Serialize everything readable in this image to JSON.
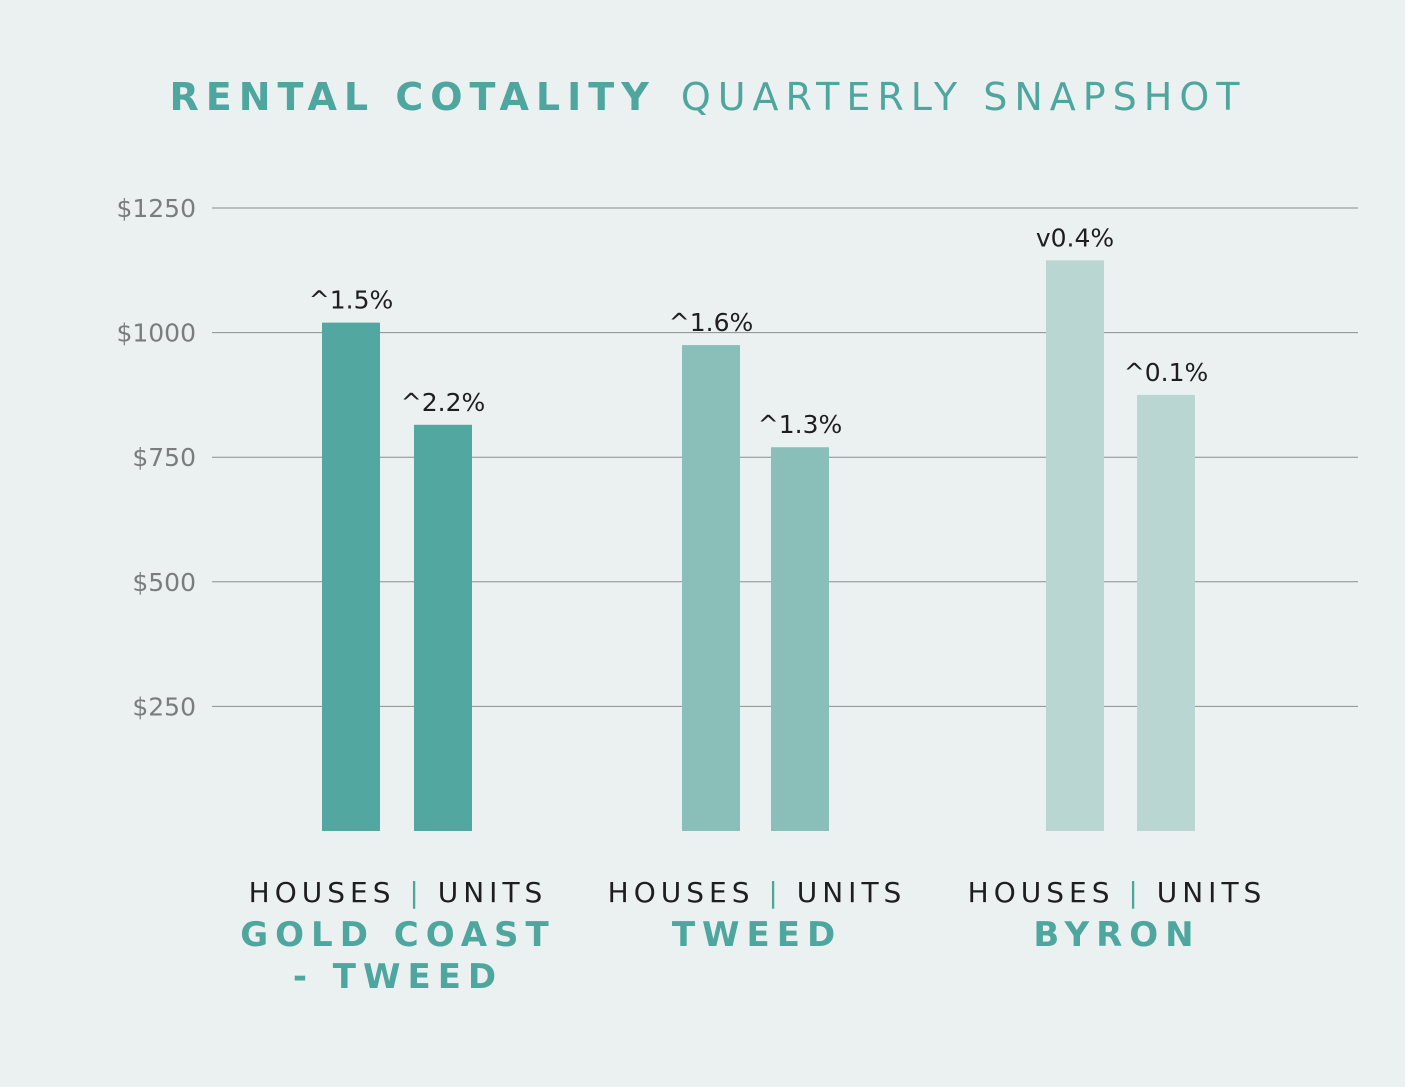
{
  "title": {
    "bold": "RENTAL COTALITY",
    "light": "QUARTERLY SNAPSHOT",
    "color": "#4fa69f"
  },
  "chart_data": {
    "type": "bar",
    "yticks": [
      {
        "value": 250,
        "label": "$250"
      },
      {
        "value": 500,
        "label": "$500"
      },
      {
        "value": 750,
        "label": "$750"
      },
      {
        "value": 1000,
        "label": "$1000"
      },
      {
        "value": 1250,
        "label": "$1250"
      }
    ],
    "ylim": [
      0,
      1250
    ],
    "grid": true,
    "groups": [
      {
        "region": [
          "GOLD COAST",
          "- TWEED"
        ],
        "category_labels": {
          "left": "HOUSES",
          "sep": "|",
          "right": "UNITS"
        },
        "color": "#52a8a0",
        "bars": [
          {
            "name": "HOUSES",
            "value": 1020,
            "label": "^1.5%"
          },
          {
            "name": "UNITS",
            "value": 815,
            "label": "^2.2%"
          }
        ]
      },
      {
        "region": [
          "TWEED"
        ],
        "category_labels": {
          "left": "HOUSES",
          "sep": "|",
          "right": "UNITS"
        },
        "color": "#8abeb8",
        "bars": [
          {
            "name": "HOUSES",
            "value": 975,
            "label": "^1.6%"
          },
          {
            "name": "UNITS",
            "value": 770,
            "label": "^1.3%"
          }
        ]
      },
      {
        "region": [
          "BYRON"
        ],
        "category_labels": {
          "left": "HOUSES",
          "sep": "|",
          "right": "UNITS"
        },
        "color": "#bad6d2",
        "bars": [
          {
            "name": "HOUSES",
            "value": 1145,
            "label": "v0.4%"
          },
          {
            "name": "UNITS",
            "value": 875,
            "label": "^0.1%"
          }
        ]
      }
    ]
  },
  "colors": {
    "background": "#ebf1f0",
    "gridline": "#8a8d8d",
    "tick_text": "#7a7d7d",
    "label_text": "#1e1e1e",
    "accent": "#4fa69f"
  }
}
